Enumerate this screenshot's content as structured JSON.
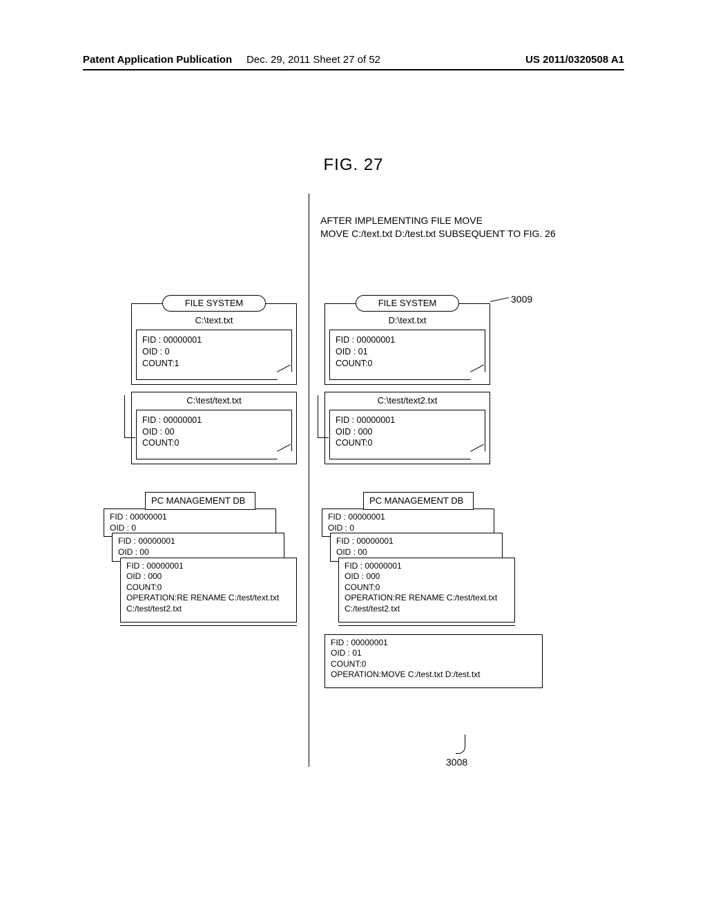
{
  "header": {
    "left": "Patent Application Publication",
    "center": "Dec. 29, 2011  Sheet 27 of 52",
    "right": "US 2011/0320508 A1"
  },
  "figure_title": "FIG. 27",
  "after_label": "AFTER IMPLEMENTING FILE MOVE\nMOVE C:/text.txt D:/test.txt SUBSEQUENT TO FIG. 26",
  "filesystem_label": "FILE SYSTEM",
  "pcm_label": "PC MANAGEMENT DB",
  "ref_top": "3009",
  "ref_bottom": "3008",
  "left_col": {
    "fs1": {
      "path": "C:\\text.txt",
      "fid": "FID    : 00000001",
      "oid": "OID   : 0",
      "count": "COUNT:1"
    },
    "fs2": {
      "path": "C:\\test/text.txt",
      "fid": "FID    : 00000001",
      "oid": "OID   : 00",
      "count": "COUNT:0"
    },
    "pcm": {
      "s0": {
        "fid": "FID   : 00000001",
        "oid": "OID  : 0"
      },
      "s1": {
        "fid": "FID   : 00000001",
        "oid": "OID  : 00"
      },
      "s2": {
        "fid": "FID   : 00000001",
        "oid": "OID  : 000",
        "count": "COUNT:0",
        "op": "OPERATION:RE RENAME C:/test/text.txt C:/test/test2.txt"
      }
    }
  },
  "right_col": {
    "fs1": {
      "path": "D:\\text.txt",
      "fid": "FID    : 00000001",
      "oid": "OID   : 01",
      "count": "COUNT:0"
    },
    "fs2": {
      "path": "C:\\test/text2.txt",
      "fid": "FID    : 00000001",
      "oid": "OID   : 000",
      "count": "COUNT:0"
    },
    "pcm": {
      "s0": {
        "fid": "FID   : 00000001",
        "oid": "OID  : 0"
      },
      "s1": {
        "fid": "FID   : 00000001",
        "oid": "OID  : 00"
      },
      "s2": {
        "fid": "FID   : 00000001",
        "oid": "OID  : 000",
        "count": "COUNT:0",
        "op": "OPERATION:RE RENAME C:/test/text.txt C:/test/test2.txt"
      },
      "s3": {
        "fid": "FID   : 00000001",
        "oid": "OID  : 01",
        "count": "COUNT:0",
        "op": "OPERATION:MOVE C:/test.txt D:/test.txt"
      }
    }
  }
}
